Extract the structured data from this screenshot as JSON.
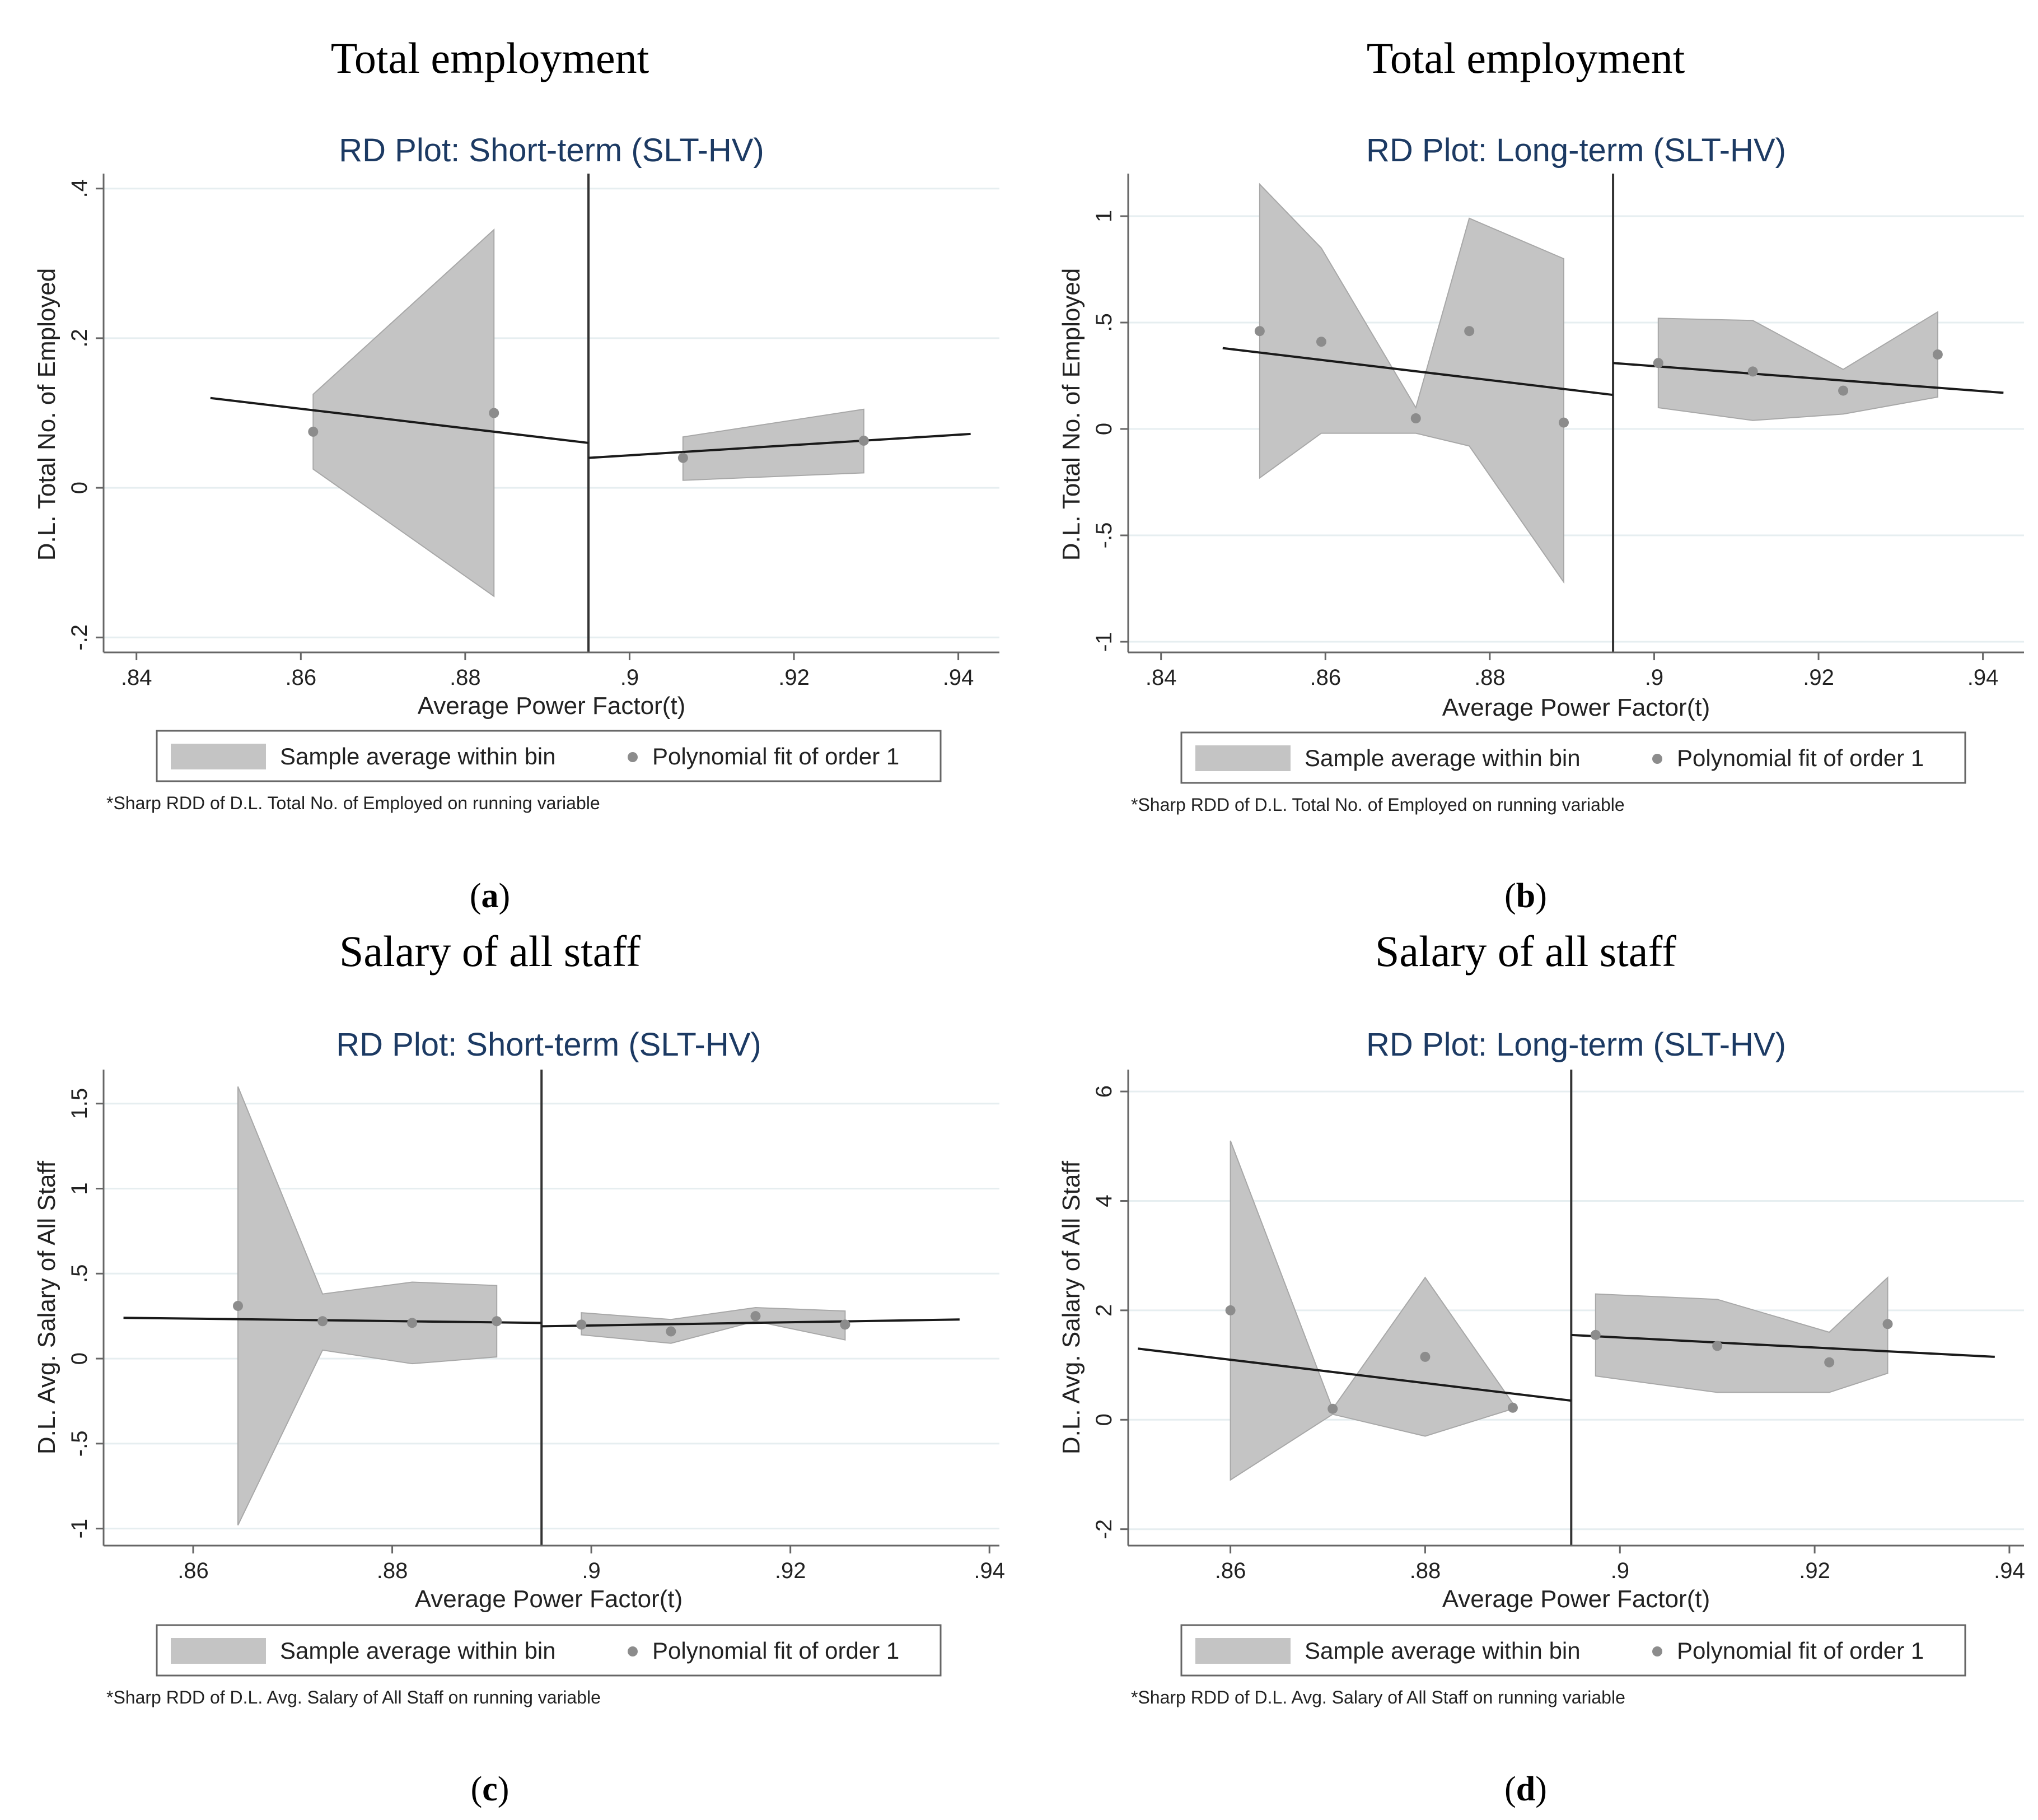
{
  "figure": {
    "panels": [
      {
        "heading": "Total employment",
        "letter": "a"
      },
      {
        "heading": "Total employment",
        "letter": "b"
      },
      {
        "heading": "Salary of all staff",
        "letter": "c"
      },
      {
        "heading": "Salary of all staff",
        "letter": "d"
      }
    ]
  },
  "colors": {
    "band": "#c4c4c4",
    "band_edge": "#a8a8a8",
    "dot": "#8c8c8c",
    "fit_line": "#1a1a1a",
    "cutoff": "#333333",
    "grid": "#e6eef0",
    "axis": "#666666",
    "title": "#1c3a63"
  },
  "chart_data": [
    {
      "type": "line",
      "title": "RD Plot: Short-term (SLT-HV)",
      "xlabel": "Average Power Factor(t)",
      "ylabel": "D.L. Total No. of Employed",
      "xlim": [
        0.836,
        0.945
      ],
      "ylim": [
        -0.22,
        0.42
      ],
      "xticks": [
        0.84,
        0.86,
        0.88,
        0.9,
        0.92,
        0.94
      ],
      "xtick_labels": [
        ".84",
        ".86",
        ".88",
        ".9",
        ".92",
        ".94"
      ],
      "yticks": [
        -0.2,
        0,
        0.2,
        0.4
      ],
      "ytick_labels": [
        "-.2",
        "0",
        ".2",
        ".4"
      ],
      "cutoff": 0.895,
      "bands": [
        {
          "x": [
            0.8615,
            0.8835
          ],
          "upper": [
            0.125,
            0.345
          ],
          "lower": [
            0.025,
            -0.145
          ]
        },
        {
          "x": [
            0.9065,
            0.9285
          ],
          "upper": [
            0.068,
            0.105
          ],
          "lower": [
            0.01,
            0.02
          ]
        }
      ],
      "points": [
        {
          "x": 0.8615,
          "y": 0.075
        },
        {
          "x": 0.8835,
          "y": 0.1
        },
        {
          "x": 0.9065,
          "y": 0.04
        },
        {
          "x": 0.9285,
          "y": 0.063
        }
      ],
      "fits": [
        {
          "x": [
            0.849,
            0.895
          ],
          "y": [
            0.12,
            0.06
          ]
        },
        {
          "x": [
            0.895,
            0.9415
          ],
          "y": [
            0.04,
            0.072
          ]
        }
      ],
      "legend": {
        "band_label": "Sample average within bin",
        "dot_label": "Polynomial fit of order 1",
        "position": "bottom"
      },
      "note": "*Sharp RDD of D.L. Total No. of Employed on running variable"
    },
    {
      "type": "line",
      "title": "RD Plot: Long-term (SLT-HV)",
      "xlabel": "Average Power Factor(t)",
      "ylabel": "D.L. Total No. of Employed",
      "xlim": [
        0.836,
        0.945
      ],
      "ylim": [
        -1.05,
        1.2
      ],
      "xticks": [
        0.84,
        0.86,
        0.88,
        0.9,
        0.92,
        0.94
      ],
      "xtick_labels": [
        ".84",
        ".86",
        ".88",
        ".9",
        ".92",
        ".94"
      ],
      "yticks": [
        -1,
        -0.5,
        0,
        0.5,
        1
      ],
      "ytick_labels": [
        "-1",
        "-.5",
        "0",
        ".5",
        "1"
      ],
      "cutoff": 0.895,
      "bands": [
        {
          "x": [
            0.852,
            0.8595,
            0.871,
            0.8775,
            0.889
          ],
          "upper": [
            1.15,
            0.85,
            0.1,
            0.99,
            0.8
          ],
          "lower": [
            -0.23,
            -0.02,
            -0.02,
            -0.08,
            -0.72
          ]
        },
        {
          "x": [
            0.9005,
            0.912,
            0.923,
            0.9345
          ],
          "upper": [
            0.52,
            0.51,
            0.28,
            0.55
          ],
          "lower": [
            0.1,
            0.04,
            0.07,
            0.15
          ]
        }
      ],
      "points": [
        {
          "x": 0.852,
          "y": 0.46
        },
        {
          "x": 0.8595,
          "y": 0.41
        },
        {
          "x": 0.871,
          "y": 0.05
        },
        {
          "x": 0.8775,
          "y": 0.46
        },
        {
          "x": 0.889,
          "y": 0.03
        },
        {
          "x": 0.9005,
          "y": 0.31
        },
        {
          "x": 0.912,
          "y": 0.27
        },
        {
          "x": 0.923,
          "y": 0.18
        },
        {
          "x": 0.9345,
          "y": 0.35
        }
      ],
      "fits": [
        {
          "x": [
            0.8475,
            0.895
          ],
          "y": [
            0.38,
            0.16
          ]
        },
        {
          "x": [
            0.895,
            0.9425
          ],
          "y": [
            0.31,
            0.17
          ]
        }
      ],
      "legend": {
        "band_label": "Sample average within bin",
        "dot_label": "Polynomial fit of order 1",
        "position": "bottom"
      },
      "note": "*Sharp RDD of D.L. Total No. of Employed on running variable"
    },
    {
      "type": "line",
      "title": "RD Plot: Short-term (SLT-HV)",
      "xlabel": "Average Power Factor(t)",
      "ylabel": "D.L. Avg. Salary of All Staff",
      "xlim": [
        0.851,
        0.941
      ],
      "ylim": [
        -1.1,
        1.7
      ],
      "xticks": [
        0.86,
        0.88,
        0.9,
        0.92,
        0.94
      ],
      "xtick_labels": [
        ".86",
        ".88",
        ".9",
        ".92",
        ".94"
      ],
      "yticks": [
        -1,
        -0.5,
        0,
        0.5,
        1,
        1.5
      ],
      "ytick_labels": [
        "-1",
        "-.5",
        "0",
        ".5",
        "1",
        "1.5"
      ],
      "cutoff": 0.895,
      "bands": [
        {
          "x": [
            0.8645,
            0.873,
            0.882,
            0.8905
          ],
          "upper": [
            1.6,
            0.38,
            0.45,
            0.43
          ],
          "lower": [
            -0.98,
            0.05,
            -0.03,
            0.01
          ]
        },
        {
          "x": [
            0.899,
            0.908,
            0.9165,
            0.9255
          ],
          "upper": [
            0.27,
            0.23,
            0.3,
            0.28
          ],
          "lower": [
            0.14,
            0.09,
            0.22,
            0.11
          ]
        }
      ],
      "points": [
        {
          "x": 0.8645,
          "y": 0.31
        },
        {
          "x": 0.873,
          "y": 0.22
        },
        {
          "x": 0.882,
          "y": 0.21
        },
        {
          "x": 0.8905,
          "y": 0.22
        },
        {
          "x": 0.899,
          "y": 0.2
        },
        {
          "x": 0.908,
          "y": 0.16
        },
        {
          "x": 0.9165,
          "y": 0.25
        },
        {
          "x": 0.9255,
          "y": 0.2
        }
      ],
      "fits": [
        {
          "x": [
            0.853,
            0.895
          ],
          "y": [
            0.24,
            0.21
          ]
        },
        {
          "x": [
            0.895,
            0.937
          ],
          "y": [
            0.19,
            0.23
          ]
        }
      ],
      "legend": {
        "band_label": "Sample average within bin",
        "dot_label": "Polynomial fit of order 1",
        "position": "bottom"
      },
      "note": "*Sharp RDD of D.L. Avg. Salary of All Staff on running variable"
    },
    {
      "type": "line",
      "title": "RD Plot: Long-term (SLT-HV)",
      "xlabel": "Average Power Factor(t)",
      "ylabel": "D.L. Avg. Salary of All Staff",
      "xlim": [
        0.8495,
        0.9415
      ],
      "ylim": [
        -2.3,
        6.4
      ],
      "xticks": [
        0.86,
        0.88,
        0.9,
        0.92,
        0.94
      ],
      "xtick_labels": [
        ".86",
        ".88",
        ".9",
        ".92",
        ".94"
      ],
      "yticks": [
        -2,
        0,
        2,
        4,
        6
      ],
      "ytick_labels": [
        "-2",
        "0",
        "2",
        "4",
        "6"
      ],
      "cutoff": 0.895,
      "bands": [
        {
          "x": [
            0.86,
            0.8705,
            0.88,
            0.889
          ],
          "upper": [
            5.1,
            0.2,
            2.6,
            0.3
          ],
          "lower": [
            -1.1,
            0.1,
            -0.3,
            0.2
          ]
        },
        {
          "x": [
            0.8975,
            0.91,
            0.9215,
            0.9275
          ],
          "upper": [
            2.3,
            2.2,
            1.6,
            2.6
          ],
          "lower": [
            0.8,
            0.5,
            0.5,
            0.85
          ]
        }
      ],
      "points": [
        {
          "x": 0.86,
          "y": 2.0
        },
        {
          "x": 0.8705,
          "y": 0.2
        },
        {
          "x": 0.88,
          "y": 1.15
        },
        {
          "x": 0.889,
          "y": 0.22
        },
        {
          "x": 0.8975,
          "y": 1.55
        },
        {
          "x": 0.91,
          "y": 1.35
        },
        {
          "x": 0.9215,
          "y": 1.05
        },
        {
          "x": 0.9275,
          "y": 1.75
        }
      ],
      "fits": [
        {
          "x": [
            0.8505,
            0.895
          ],
          "y": [
            1.3,
            0.35
          ]
        },
        {
          "x": [
            0.895,
            0.9385
          ],
          "y": [
            1.55,
            1.15
          ]
        }
      ],
      "legend": {
        "band_label": "Sample average within bin",
        "dot_label": "Polynomial fit of order 1",
        "position": "bottom"
      },
      "note": "*Sharp RDD of D.L. Avg. Salary of All Staff on running variable"
    }
  ]
}
